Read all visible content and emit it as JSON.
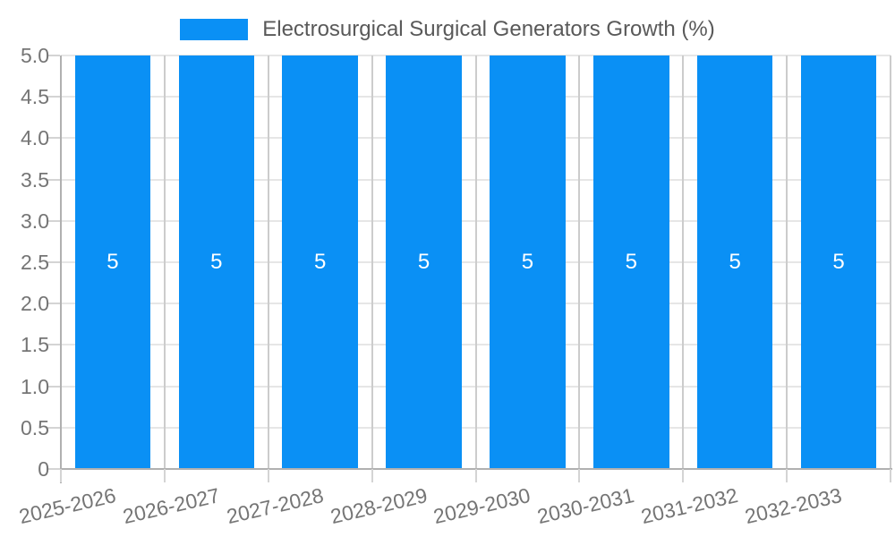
{
  "legend": {
    "label": "Electrosurgical Surgical Generators Growth (%)"
  },
  "chart_data": {
    "type": "bar",
    "title": "Electrosurgical Surgical Generators Growth (%)",
    "categories": [
      "2025-2026",
      "2026-2027",
      "2027-2028",
      "2028-2029",
      "2029-2030",
      "2030-2031",
      "2031-2032",
      "2032-2033"
    ],
    "values": [
      5,
      5,
      5,
      5,
      5,
      5,
      5,
      5
    ],
    "bar_labels": [
      "5",
      "5",
      "5",
      "5",
      "5",
      "5",
      "5",
      "5"
    ],
    "xlabel": "",
    "ylabel": "",
    "ylim": [
      0,
      5
    ],
    "ytick_step": 0.5,
    "ytick_labels": [
      "0",
      "0.5",
      "1.0",
      "1.5",
      "2.0",
      "2.5",
      "3.0",
      "3.5",
      "4.0",
      "4.5",
      "5.0"
    ],
    "grid": true,
    "legend_position": "top-center",
    "colors": {
      "bar": "#0a90f5",
      "title_text": "#595959",
      "axis_text": "#757575",
      "grid_h": "#e6e6e6",
      "grid_v": "#cccccc",
      "axis_line": "#b0b0b0",
      "tick": "#d4d4d4",
      "bar_label": "#ffffff",
      "background": "#ffffff"
    }
  }
}
